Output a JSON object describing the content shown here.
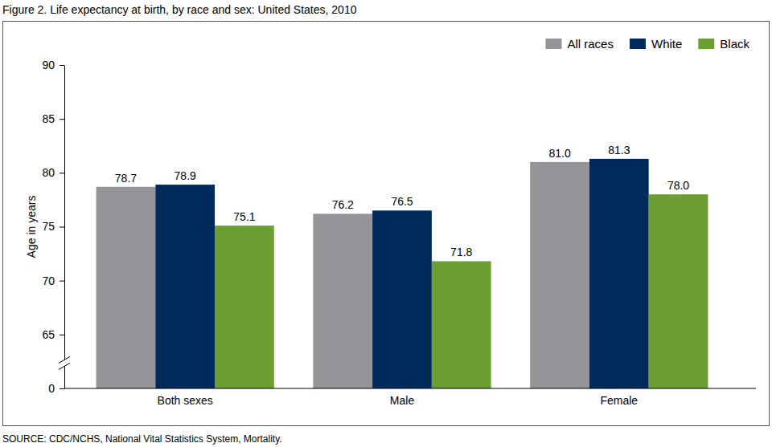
{
  "chart_data": {
    "type": "bar",
    "title": "Figure 2. Life expectancy at birth, by race and sex: United States, 2010",
    "source": "SOURCE: CDC/NCHS, National Vital Statistics System, Mortality.",
    "y_label": "Age in years",
    "categories": [
      "Both sexes",
      "Male",
      "Female"
    ],
    "series": [
      {
        "name": "All races",
        "color": "#939598",
        "values": [
          78.7,
          76.2,
          81.0
        ],
        "value_labels": [
          "78.7",
          "76.2",
          "81.0"
        ]
      },
      {
        "name": "White",
        "color": "#002a5c",
        "values": [
          78.9,
          76.5,
          81.3
        ],
        "value_labels": [
          "78.9",
          "76.5",
          "81.3"
        ]
      },
      {
        "name": "Black",
        "color": "#6b9e33",
        "values": [
          75.1,
          71.8,
          78.0
        ],
        "value_labels": [
          "75.1",
          "71.8",
          "78.0"
        ]
      }
    ],
    "ylim": [
      0,
      90
    ],
    "yticks": [
      0,
      65,
      70,
      75,
      80,
      85,
      90
    ],
    "grid": false,
    "legend": "upper right",
    "data_labels": true
  }
}
